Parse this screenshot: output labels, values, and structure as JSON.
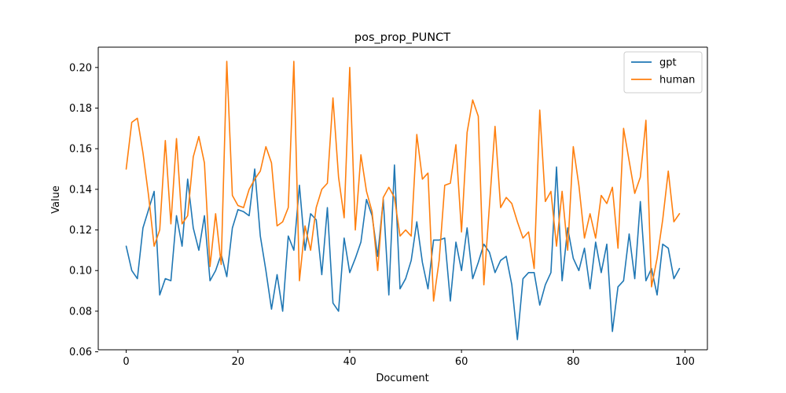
{
  "chart_data": {
    "type": "line",
    "title": "pos_prop_PUNCT",
    "xlabel": "Document",
    "ylabel": "Value",
    "xlim": [
      -5,
      104
    ],
    "ylim": [
      0.061,
      0.21
    ],
    "xticks": [
      0,
      20,
      40,
      60,
      80,
      100
    ],
    "yticks": [
      0.06,
      0.08,
      0.1,
      0.12,
      0.14,
      0.16,
      0.18,
      0.2
    ],
    "xtick_labels": [
      "0",
      "20",
      "40",
      "60",
      "80",
      "100"
    ],
    "ytick_labels": [
      "0.06",
      "0.08",
      "0.10",
      "0.12",
      "0.14",
      "0.16",
      "0.18",
      "0.20"
    ],
    "legend_position": "top-right",
    "grid": false,
    "x": [
      0,
      1,
      2,
      3,
      4,
      5,
      6,
      7,
      8,
      9,
      10,
      11,
      12,
      13,
      14,
      15,
      16,
      17,
      18,
      19,
      20,
      21,
      22,
      23,
      24,
      25,
      26,
      27,
      28,
      29,
      30,
      31,
      32,
      33,
      34,
      35,
      36,
      37,
      38,
      39,
      40,
      41,
      42,
      43,
      44,
      45,
      46,
      47,
      48,
      49,
      50,
      51,
      52,
      53,
      54,
      55,
      56,
      57,
      58,
      59,
      60,
      61,
      62,
      63,
      64,
      65,
      66,
      67,
      68,
      69,
      70,
      71,
      72,
      73,
      74,
      75,
      76,
      77,
      78,
      79,
      80,
      81,
      82,
      83,
      84,
      85,
      86,
      87,
      88,
      89,
      90,
      91,
      92,
      93,
      94,
      95,
      96,
      97,
      98,
      99
    ],
    "series": [
      {
        "name": "gpt",
        "color": "#1f77b4",
        "values": [
          0.112,
          0.1,
          0.096,
          0.121,
          0.13,
          0.139,
          0.088,
          0.096,
          0.095,
          0.127,
          0.112,
          0.145,
          0.121,
          0.11,
          0.127,
          0.095,
          0.1,
          0.108,
          0.097,
          0.121,
          0.13,
          0.129,
          0.127,
          0.15,
          0.117,
          0.1,
          0.081,
          0.098,
          0.08,
          0.117,
          0.11,
          0.142,
          0.11,
          0.128,
          0.125,
          0.098,
          0.131,
          0.084,
          0.08,
          0.116,
          0.099,
          0.106,
          0.114,
          0.135,
          0.127,
          0.107,
          0.135,
          0.088,
          0.152,
          0.091,
          0.096,
          0.105,
          0.124,
          0.104,
          0.091,
          0.115,
          0.115,
          0.116,
          0.085,
          0.114,
          0.1,
          0.121,
          0.096,
          0.104,
          0.113,
          0.109,
          0.099,
          0.105,
          0.107,
          0.093,
          0.066,
          0.096,
          0.099,
          0.099,
          0.083,
          0.093,
          0.099,
          0.151,
          0.095,
          0.121,
          0.106,
          0.1,
          0.111,
          0.091,
          0.114,
          0.099,
          0.113,
          0.07,
          0.092,
          0.095,
          0.118,
          0.096,
          0.134,
          0.095,
          0.101,
          0.088,
          0.113,
          0.111,
          0.096,
          0.101
        ]
      },
      {
        "name": "human",
        "color": "#ff7f0e",
        "values": [
          0.15,
          0.173,
          0.175,
          0.158,
          0.137,
          0.112,
          0.12,
          0.164,
          0.123,
          0.165,
          0.123,
          0.127,
          0.156,
          0.166,
          0.153,
          0.102,
          0.128,
          0.103,
          0.203,
          0.137,
          0.132,
          0.131,
          0.14,
          0.145,
          0.149,
          0.161,
          0.153,
          0.122,
          0.124,
          0.131,
          0.203,
          0.095,
          0.122,
          0.11,
          0.131,
          0.14,
          0.143,
          0.185,
          0.146,
          0.126,
          0.2,
          0.12,
          0.157,
          0.139,
          0.129,
          0.1,
          0.136,
          0.141,
          0.136,
          0.117,
          0.12,
          0.117,
          0.167,
          0.145,
          0.148,
          0.085,
          0.105,
          0.142,
          0.143,
          0.162,
          0.119,
          0.168,
          0.184,
          0.176,
          0.093,
          0.132,
          0.171,
          0.131,
          0.136,
          0.133,
          0.124,
          0.116,
          0.119,
          0.101,
          0.179,
          0.134,
          0.139,
          0.112,
          0.139,
          0.11,
          0.161,
          0.142,
          0.116,
          0.128,
          0.116,
          0.137,
          0.133,
          0.141,
          0.111,
          0.17,
          0.154,
          0.138,
          0.146,
          0.174,
          0.092,
          0.106,
          0.125,
          0.149,
          0.124,
          0.128
        ]
      }
    ]
  }
}
